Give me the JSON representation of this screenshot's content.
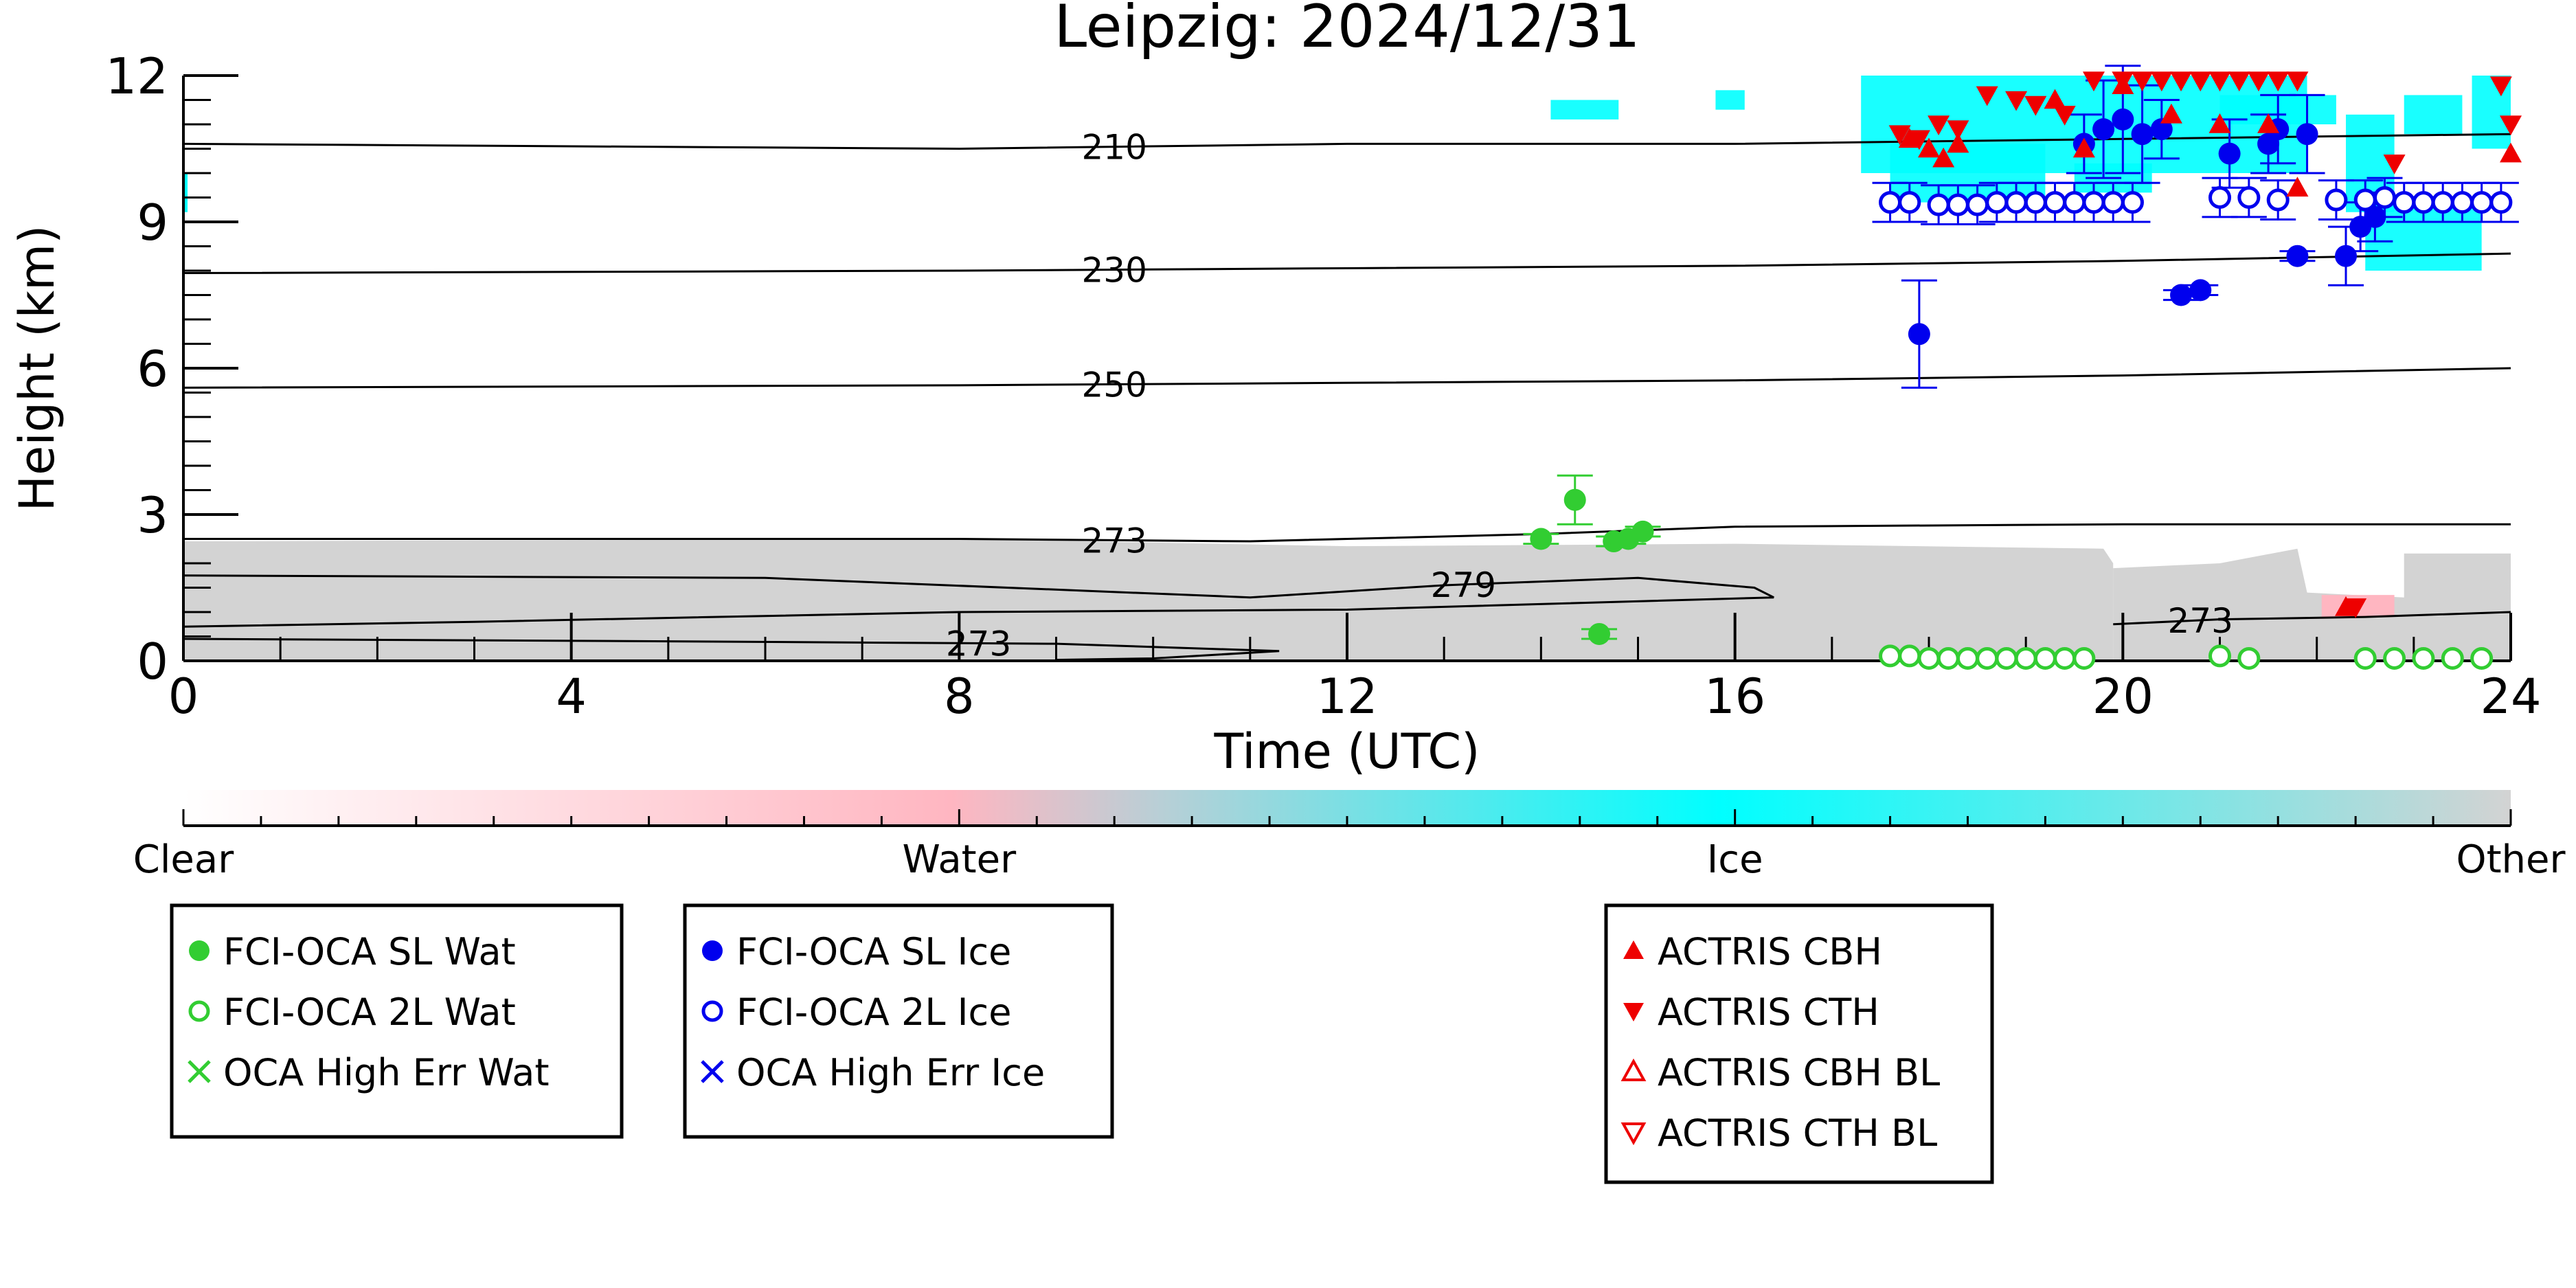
{
  "chart_data": {
    "type": "scatter",
    "title": "Leipzig: 2024/12/31",
    "xlabel": "Time (UTC)",
    "ylabel": "Height (km)",
    "xlim": [
      0,
      24
    ],
    "ylim": [
      0,
      12
    ],
    "xticks": [
      0,
      4,
      8,
      12,
      16,
      20,
      24
    ],
    "yticks": [
      0,
      3,
      6,
      9,
      12
    ],
    "colorbar": {
      "labels": [
        "Clear",
        "Water",
        "Ice",
        "Other"
      ],
      "colors": [
        "#ffffff",
        "#ffb6c1",
        "#00ffff",
        "#d3d3d3"
      ]
    },
    "contours": [
      {
        "label": "210",
        "label_x": 9.6,
        "points": [
          [
            0,
            10.6
          ],
          [
            8,
            10.5
          ],
          [
            12,
            10.6
          ],
          [
            16,
            10.6
          ],
          [
            20,
            10.7
          ],
          [
            24,
            10.8
          ]
        ]
      },
      {
        "label": "230",
        "label_x": 9.6,
        "points": [
          [
            0,
            7.95
          ],
          [
            8,
            8.0
          ],
          [
            12,
            8.05
          ],
          [
            16,
            8.1
          ],
          [
            20,
            8.2
          ],
          [
            24,
            8.35
          ]
        ]
      },
      {
        "label": "250",
        "label_x": 9.6,
        "points": [
          [
            0,
            5.6
          ],
          [
            8,
            5.65
          ],
          [
            12,
            5.7
          ],
          [
            16,
            5.75
          ],
          [
            20,
            5.85
          ],
          [
            24,
            6.0
          ]
        ]
      },
      {
        "label": "273",
        "label_x": 9.6,
        "points": [
          [
            0,
            2.5
          ],
          [
            8,
            2.5
          ],
          [
            11,
            2.45
          ],
          [
            14,
            2.6
          ],
          [
            16,
            2.75
          ],
          [
            20,
            2.8
          ],
          [
            24,
            2.8
          ]
        ]
      },
      {
        "label": "279",
        "label_x": 13.2,
        "points": [
          [
            0,
            1.75
          ],
          [
            6,
            1.7
          ],
          [
            11,
            1.3
          ],
          [
            13,
            1.55
          ],
          [
            15,
            1.7
          ],
          [
            16.2,
            1.5
          ],
          [
            16.4,
            1.3
          ],
          [
            12,
            1.05
          ],
          [
            8,
            1.0
          ],
          [
            3,
            0.8
          ],
          [
            0,
            0.7
          ]
        ]
      },
      {
        "label": "273",
        "label_x": 8.2,
        "points": [
          [
            0,
            0.45
          ],
          [
            5,
            0.4
          ],
          [
            9,
            0.35
          ],
          [
            11.3,
            0.2
          ],
          [
            10,
            0.05
          ],
          [
            9,
            0.02
          ]
        ]
      },
      {
        "label": "273",
        "label_x": 20.8,
        "points": [
          [
            19.9,
            0.75
          ],
          [
            21,
            0.85
          ],
          [
            22.5,
            0.9
          ],
          [
            24,
            1.0
          ]
        ]
      }
    ],
    "series": [
      {
        "name": "FCI-OCA SL Wat",
        "marker": "filled-circle",
        "color": "#32cd32",
        "x": [
          14.0,
          14.35,
          14.6,
          14.75,
          14.9,
          15.05
        ],
        "y": [
          2.5,
          3.3,
          0.55,
          2.45,
          2.5,
          2.65
        ],
        "err": [
          0.1,
          0.5,
          0.1,
          0.1,
          0.1,
          0.1
        ]
      },
      {
        "name": "FCI-OCA 2L Wat",
        "marker": "open-circle",
        "color": "#32cd32",
        "x": [
          17.6,
          17.8,
          18.0,
          18.2,
          18.4,
          18.6,
          18.8,
          19.0,
          19.2,
          19.4,
          19.6,
          21.0,
          21.3,
          22.5,
          22.8,
          23.1,
          23.4,
          23.7
        ],
        "y": [
          0.1,
          0.1,
          0.05,
          0.05,
          0.05,
          0.05,
          0.05,
          0.05,
          0.05,
          0.05,
          0.05,
          0.1,
          0.05,
          0.05,
          0.05,
          0.05,
          0.05,
          0.05
        ],
        "err": []
      },
      {
        "name": "OCA High Err Wat",
        "marker": "x",
        "color": "#32cd32",
        "x": [],
        "y": [],
        "err": []
      },
      {
        "name": "FCI-OCA SL Ice",
        "marker": "filled-circle",
        "color": "#0000ee",
        "x": [
          17.9,
          19.6,
          19.8,
          20.0,
          20.2,
          20.4,
          20.6,
          20.8,
          21.1,
          21.5,
          21.6,
          21.8,
          21.9,
          22.3,
          22.45,
          22.6
        ],
        "y": [
          6.7,
          10.6,
          10.9,
          11.1,
          10.8,
          10.9,
          7.5,
          7.6,
          10.4,
          10.6,
          10.9,
          8.3,
          10.8,
          8.3,
          8.9,
          9.1
        ],
        "err": [
          1.1,
          0.6,
          1.0,
          1.1,
          1.0,
          0.6,
          0.1,
          0.1,
          0.7,
          0.6,
          0.7,
          0.1,
          0.8,
          0.6,
          0.5,
          0.5
        ]
      },
      {
        "name": "FCI-OCA 2L Ice",
        "marker": "open-circle",
        "color": "#0000ee",
        "x": [
          17.6,
          17.8,
          18.1,
          18.3,
          18.5,
          18.7,
          18.9,
          19.1,
          19.3,
          19.5,
          19.7,
          19.9,
          20.1,
          21.0,
          21.3,
          21.6,
          22.2,
          22.5,
          22.7,
          22.9,
          23.1,
          23.3,
          23.5,
          23.7,
          23.9
        ],
        "y": [
          9.4,
          9.4,
          9.35,
          9.35,
          9.35,
          9.4,
          9.4,
          9.4,
          9.4,
          9.4,
          9.4,
          9.4,
          9.4,
          9.5,
          9.5,
          9.45,
          9.45,
          9.45,
          9.5,
          9.4,
          9.4,
          9.4,
          9.4,
          9.4,
          9.4
        ],
        "err": [
          0.4,
          0.4,
          0.4,
          0.4,
          0.4,
          0.4,
          0.4,
          0.4,
          0.4,
          0.4,
          0.4,
          0.4,
          0.4,
          0.4,
          0.4,
          0.4,
          0.4,
          0.4,
          0.4,
          0.4,
          0.4,
          0.4,
          0.4,
          0.4,
          0.4
        ]
      },
      {
        "name": "OCA High Err Ice",
        "marker": "x",
        "color": "#0000ee",
        "x": [],
        "y": [],
        "err": []
      },
      {
        "name": "ACTRIS CBH",
        "marker": "triangle-up",
        "color": "#ee0000",
        "x": [
          17.8,
          18.0,
          18.15,
          18.3,
          19.3,
          19.6,
          20.0,
          20.5,
          21.0,
          21.5,
          21.8,
          22.3,
          24.0
        ],
        "y": [
          10.7,
          10.5,
          10.3,
          10.6,
          11.5,
          10.5,
          11.8,
          11.2,
          11.0,
          11.0,
          9.7,
          1.1,
          10.4
        ],
        "err": []
      },
      {
        "name": "ACTRIS CTH",
        "marker": "triangle-down",
        "color": "#ee0000",
        "x": [
          17.7,
          17.9,
          18.1,
          18.3,
          18.6,
          18.9,
          19.1,
          19.4,
          19.7,
          20.0,
          20.2,
          20.4,
          20.6,
          20.8,
          21.0,
          21.2,
          21.4,
          21.6,
          21.8,
          22.4,
          22.8,
          23.9,
          24.0
        ],
        "y": [
          10.8,
          10.7,
          11.0,
          10.9,
          11.6,
          11.5,
          11.4,
          11.2,
          11.9,
          11.9,
          11.9,
          11.9,
          11.9,
          11.9,
          11.9,
          11.9,
          11.9,
          11.9,
          11.9,
          1.1,
          10.2,
          11.8,
          11.0
        ],
        "err": []
      },
      {
        "name": "ACTRIS CBH BL",
        "marker": "open-triangle-up",
        "color": "#ee0000",
        "x": [],
        "y": [],
        "err": []
      },
      {
        "name": "ACTRIS CTH BL",
        "marker": "open-triangle-down",
        "color": "#ee0000",
        "x": [],
        "y": [],
        "err": []
      }
    ],
    "legends": [
      [
        "FCI-OCA SL Wat",
        "FCI-OCA 2L Wat",
        "OCA High Err Wat"
      ],
      [
        "FCI-OCA SL Ice",
        "FCI-OCA 2L Ice",
        "OCA High Err Ice"
      ],
      [
        "ACTRIS CBH",
        "ACTRIS CTH",
        "ACTRIS CBH BL",
        "ACTRIS CTH BL"
      ]
    ]
  }
}
